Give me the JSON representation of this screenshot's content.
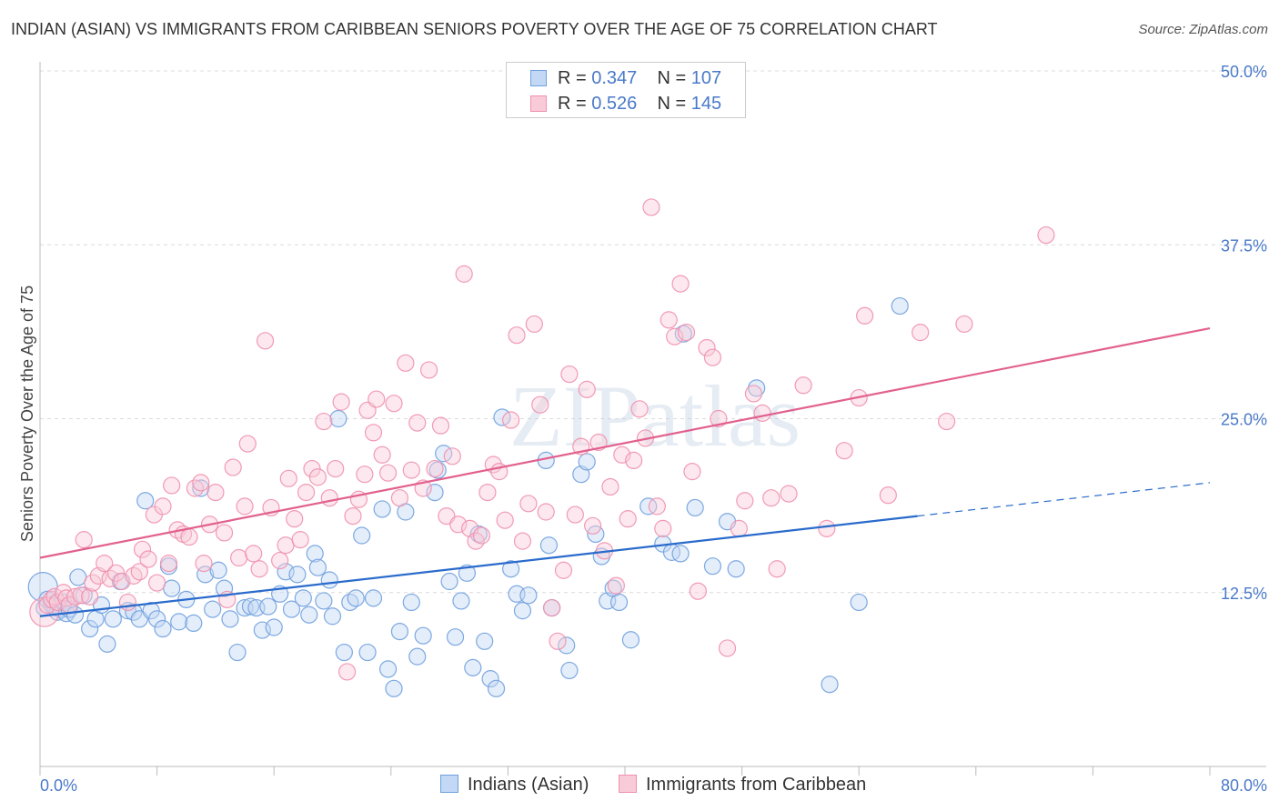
{
  "header": {
    "title": "INDIAN (ASIAN) VS IMMIGRANTS FROM CARIBBEAN SENIORS POVERTY OVER THE AGE OF 75 CORRELATION CHART",
    "source": "Source: ZipAtlas.com"
  },
  "watermark": "ZIPatlas",
  "legend": {
    "rows": [
      {
        "r_label": "R = ",
        "r_value": "0.347",
        "n_label": "N = ",
        "n_value": "107"
      },
      {
        "r_label": "R = ",
        "r_value": "0.526",
        "n_label": "N = ",
        "n_value": "145"
      }
    ]
  },
  "bottom_legend": [
    "Indians (Asian)",
    "Immigrants from Caribbean"
  ],
  "chart_data": {
    "type": "scatter",
    "title": "INDIAN (ASIAN) VS IMMIGRANTS FROM CARIBBEAN SENIORS POVERTY OVER THE AGE OF 75 CORRELATION CHART",
    "xlabel": "",
    "ylabel": "Seniors Poverty Over the Age of 75",
    "xlim": [
      0,
      80
    ],
    "ylim": [
      0,
      50
    ],
    "x_tick_labels": [
      "0.0%",
      "80.0%"
    ],
    "y_ticks": [
      12.5,
      25.0,
      37.5,
      50.0
    ],
    "y_tick_labels": [
      "12.5%",
      "25.0%",
      "37.5%",
      "50.0%"
    ],
    "grid": true,
    "legend_position": "top-center",
    "colors": {
      "blue": "#6fa0de",
      "pink": "#ef90ae",
      "blue_line": "#2a6bcc",
      "pink_line": "#e2608e"
    },
    "series": [
      {
        "name": "Indians (Asian)",
        "color": "#6fa0de",
        "trend": {
          "x_start": 0,
          "y_start": 10.8,
          "x_solid_end": 60,
          "y_solid_end": 18.0,
          "x_end": 80,
          "y_end": 20.4
        },
        "points": [
          [
            0.2,
            12.9
          ],
          [
            0.3,
            11.4
          ],
          [
            0.5,
            12.0
          ],
          [
            0.8,
            11.6
          ],
          [
            1.0,
            11.5
          ],
          [
            1.2,
            11.1
          ],
          [
            1.4,
            11.3
          ],
          [
            1.6,
            11.8
          ],
          [
            1.8,
            11.0
          ],
          [
            2.0,
            11.3
          ],
          [
            2.4,
            10.9
          ],
          [
            2.6,
            13.6
          ],
          [
            3.0,
            12.3
          ],
          [
            3.4,
            9.9
          ],
          [
            3.8,
            10.6
          ],
          [
            4.2,
            11.6
          ],
          [
            4.6,
            8.8
          ],
          [
            5.0,
            10.6
          ],
          [
            5.5,
            13.3
          ],
          [
            6.0,
            11.2
          ],
          [
            6.4,
            11.1
          ],
          [
            6.8,
            10.6
          ],
          [
            7.2,
            19.1
          ],
          [
            7.6,
            11.2
          ],
          [
            8.0,
            10.6
          ],
          [
            8.4,
            9.9
          ],
          [
            8.8,
            14.4
          ],
          [
            9.0,
            12.8
          ],
          [
            9.5,
            10.4
          ],
          [
            10.0,
            12.0
          ],
          [
            10.5,
            10.3
          ],
          [
            11.0,
            20.0
          ],
          [
            11.3,
            13.8
          ],
          [
            11.8,
            11.3
          ],
          [
            12.2,
            14.1
          ],
          [
            12.6,
            12.8
          ],
          [
            13.0,
            10.6
          ],
          [
            13.5,
            8.2
          ],
          [
            14.0,
            11.4
          ],
          [
            14.4,
            11.5
          ],
          [
            14.8,
            11.4
          ],
          [
            15.2,
            9.8
          ],
          [
            15.6,
            11.5
          ],
          [
            16.0,
            10.0
          ],
          [
            16.4,
            12.4
          ],
          [
            16.8,
            14.0
          ],
          [
            17.2,
            11.3
          ],
          [
            17.6,
            13.8
          ],
          [
            18.0,
            12.1
          ],
          [
            18.4,
            10.9
          ],
          [
            18.8,
            15.3
          ],
          [
            19.0,
            14.3
          ],
          [
            19.4,
            11.9
          ],
          [
            19.8,
            13.4
          ],
          [
            20.0,
            10.8
          ],
          [
            20.4,
            25.0
          ],
          [
            20.8,
            8.2
          ],
          [
            21.2,
            11.8
          ],
          [
            21.6,
            12.1
          ],
          [
            22.0,
            16.6
          ],
          [
            22.4,
            8.2
          ],
          [
            22.8,
            12.1
          ],
          [
            23.4,
            18.5
          ],
          [
            23.8,
            7.0
          ],
          [
            24.2,
            5.6
          ],
          [
            24.6,
            9.7
          ],
          [
            25.0,
            18.3
          ],
          [
            25.4,
            11.8
          ],
          [
            25.8,
            7.9
          ],
          [
            26.2,
            9.4
          ],
          [
            27.0,
            19.7
          ],
          [
            27.2,
            21.3
          ],
          [
            27.6,
            22.5
          ],
          [
            28.0,
            13.3
          ],
          [
            28.4,
            9.3
          ],
          [
            28.8,
            11.9
          ],
          [
            29.2,
            13.9
          ],
          [
            29.6,
            7.1
          ],
          [
            30.0,
            16.7
          ],
          [
            30.4,
            9.0
          ],
          [
            30.8,
            6.3
          ],
          [
            31.2,
            5.6
          ],
          [
            31.6,
            25.1
          ],
          [
            32.2,
            14.2
          ],
          [
            32.6,
            12.4
          ],
          [
            33.0,
            11.2
          ],
          [
            33.4,
            12.3
          ],
          [
            34.6,
            22.0
          ],
          [
            34.8,
            15.9
          ],
          [
            35.0,
            11.4
          ],
          [
            36.0,
            8.7
          ],
          [
            36.2,
            6.9
          ],
          [
            37.0,
            21.0
          ],
          [
            37.4,
            21.9
          ],
          [
            38.0,
            16.7
          ],
          [
            38.4,
            15.1
          ],
          [
            38.8,
            11.9
          ],
          [
            39.2,
            12.8
          ],
          [
            39.6,
            11.8
          ],
          [
            40.4,
            9.1
          ],
          [
            41.6,
            18.7
          ],
          [
            42.6,
            16.0
          ],
          [
            43.2,
            15.4
          ],
          [
            43.8,
            15.3
          ],
          [
            44.0,
            31.1
          ],
          [
            44.8,
            18.6
          ],
          [
            46.0,
            14.4
          ],
          [
            47.0,
            17.6
          ],
          [
            47.6,
            14.2
          ],
          [
            49.0,
            27.2
          ],
          [
            54.0,
            5.9
          ],
          [
            56.0,
            11.8
          ],
          [
            58.8,
            33.1
          ]
        ]
      },
      {
        "name": "Immigrants from Caribbean",
        "color": "#ef90ae",
        "trend": {
          "x_start": 0,
          "y_start": 15.0,
          "x_end": 80,
          "y_end": 31.5
        },
        "points": [
          [
            0.3,
            11.1
          ],
          [
            0.5,
            11.6
          ],
          [
            0.8,
            12.0
          ],
          [
            1.0,
            12.2
          ],
          [
            1.2,
            11.8
          ],
          [
            1.6,
            12.5
          ],
          [
            1.8,
            12.1
          ],
          [
            2.0,
            11.6
          ],
          [
            2.4,
            12.2
          ],
          [
            2.8,
            12.3
          ],
          [
            3.0,
            16.3
          ],
          [
            3.4,
            12.2
          ],
          [
            3.6,
            13.2
          ],
          [
            4.0,
            13.7
          ],
          [
            4.4,
            14.6
          ],
          [
            4.8,
            13.5
          ],
          [
            5.2,
            13.9
          ],
          [
            5.6,
            13.3
          ],
          [
            6.0,
            11.8
          ],
          [
            6.4,
            13.7
          ],
          [
            6.8,
            14.0
          ],
          [
            7.0,
            15.6
          ],
          [
            7.4,
            14.9
          ],
          [
            7.8,
            18.1
          ],
          [
            8.0,
            13.2
          ],
          [
            8.4,
            18.7
          ],
          [
            8.8,
            14.6
          ],
          [
            9.0,
            20.2
          ],
          [
            9.4,
            17.0
          ],
          [
            9.8,
            16.7
          ],
          [
            10.2,
            16.5
          ],
          [
            10.6,
            20.0
          ],
          [
            11.0,
            20.4
          ],
          [
            11.2,
            14.6
          ],
          [
            11.6,
            17.4
          ],
          [
            12.0,
            19.7
          ],
          [
            12.6,
            16.8
          ],
          [
            12.8,
            12.0
          ],
          [
            13.2,
            21.5
          ],
          [
            13.6,
            15.0
          ],
          [
            14.0,
            18.7
          ],
          [
            14.2,
            23.2
          ],
          [
            14.6,
            15.3
          ],
          [
            15.0,
            14.2
          ],
          [
            15.4,
            30.6
          ],
          [
            15.8,
            18.6
          ],
          [
            16.4,
            14.8
          ],
          [
            16.8,
            15.9
          ],
          [
            17.0,
            20.7
          ],
          [
            17.4,
            17.8
          ],
          [
            17.8,
            16.3
          ],
          [
            18.2,
            19.7
          ],
          [
            18.6,
            21.4
          ],
          [
            19.0,
            20.8
          ],
          [
            19.4,
            24.8
          ],
          [
            19.8,
            19.3
          ],
          [
            20.2,
            21.4
          ],
          [
            20.6,
            26.2
          ],
          [
            21.0,
            6.8
          ],
          [
            21.4,
            18.0
          ],
          [
            21.8,
            19.2
          ],
          [
            22.2,
            21.0
          ],
          [
            22.4,
            25.6
          ],
          [
            22.8,
            24.0
          ],
          [
            23.0,
            26.4
          ],
          [
            23.4,
            22.4
          ],
          [
            23.8,
            21.1
          ],
          [
            24.2,
            26.1
          ],
          [
            24.6,
            19.3
          ],
          [
            25.0,
            29.0
          ],
          [
            25.4,
            21.3
          ],
          [
            25.8,
            24.7
          ],
          [
            26.2,
            20.0
          ],
          [
            26.6,
            28.5
          ],
          [
            27.0,
            21.4
          ],
          [
            27.4,
            24.5
          ],
          [
            27.8,
            18.0
          ],
          [
            28.2,
            22.3
          ],
          [
            28.6,
            17.4
          ],
          [
            29.0,
            35.4
          ],
          [
            29.4,
            17.1
          ],
          [
            29.8,
            16.2
          ],
          [
            30.2,
            16.6
          ],
          [
            30.6,
            19.7
          ],
          [
            31.0,
            21.7
          ],
          [
            31.4,
            21.2
          ],
          [
            31.8,
            17.7
          ],
          [
            32.2,
            24.9
          ],
          [
            32.6,
            31.0
          ],
          [
            33.0,
            16.2
          ],
          [
            33.4,
            18.9
          ],
          [
            33.8,
            31.8
          ],
          [
            34.2,
            26.0
          ],
          [
            34.6,
            18.3
          ],
          [
            35.0,
            11.4
          ],
          [
            35.4,
            9.0
          ],
          [
            35.8,
            14.1
          ],
          [
            36.2,
            28.2
          ],
          [
            36.6,
            18.1
          ],
          [
            37.0,
            23.0
          ],
          [
            37.4,
            27.1
          ],
          [
            37.8,
            17.3
          ],
          [
            38.2,
            23.3
          ],
          [
            38.6,
            15.5
          ],
          [
            39.0,
            20.1
          ],
          [
            39.4,
            13.0
          ],
          [
            39.8,
            22.4
          ],
          [
            40.2,
            17.8
          ],
          [
            40.6,
            22.0
          ],
          [
            41.0,
            25.7
          ],
          [
            41.4,
            23.6
          ],
          [
            41.8,
            40.2
          ],
          [
            42.2,
            18.7
          ],
          [
            42.6,
            17.1
          ],
          [
            43.0,
            32.1
          ],
          [
            43.4,
            30.9
          ],
          [
            43.8,
            34.7
          ],
          [
            44.2,
            31.2
          ],
          [
            44.6,
            21.2
          ],
          [
            45.0,
            12.6
          ],
          [
            45.6,
            30.1
          ],
          [
            46.0,
            29.4
          ],
          [
            46.4,
            25.0
          ],
          [
            47.0,
            8.5
          ],
          [
            47.8,
            17.1
          ],
          [
            48.2,
            19.1
          ],
          [
            48.8,
            26.8
          ],
          [
            49.4,
            25.4
          ],
          [
            50.0,
            19.3
          ],
          [
            50.4,
            14.2
          ],
          [
            51.2,
            19.6
          ],
          [
            52.2,
            27.4
          ],
          [
            53.8,
            17.1
          ],
          [
            55.0,
            22.7
          ],
          [
            56.0,
            26.5
          ],
          [
            56.4,
            32.4
          ],
          [
            58.0,
            19.5
          ],
          [
            60.2,
            31.2
          ],
          [
            62.0,
            24.8
          ],
          [
            63.2,
            31.8
          ],
          [
            68.8,
            38.2
          ]
        ]
      }
    ]
  }
}
